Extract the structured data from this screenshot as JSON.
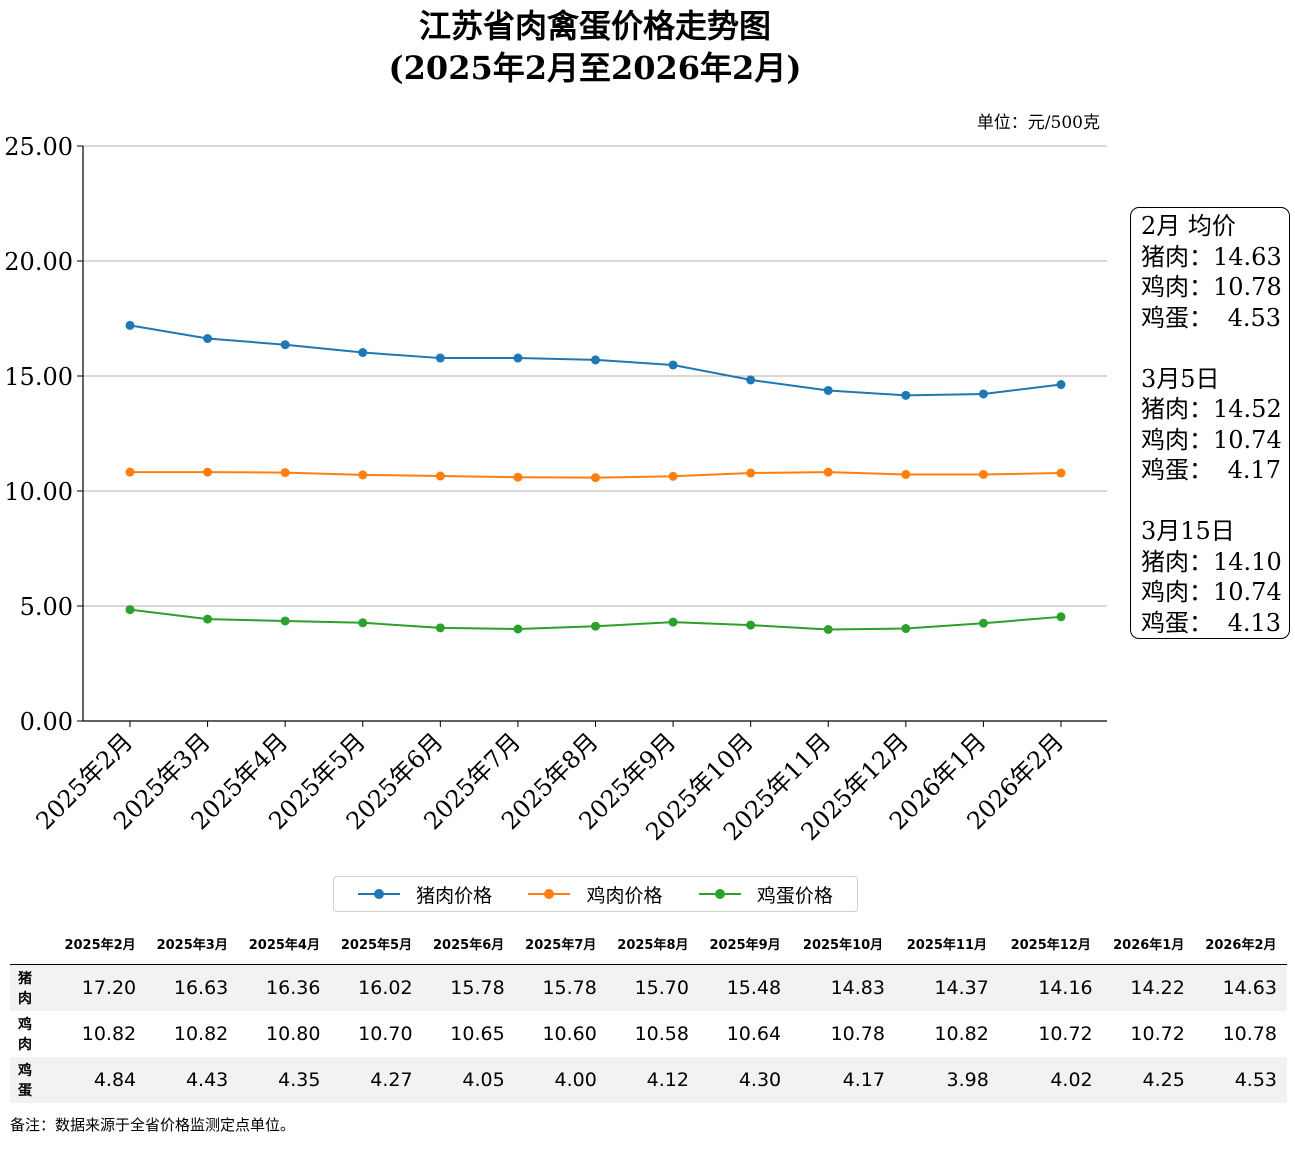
{
  "title_line1": "江苏省肉禽蛋价格走势图",
  "title_line2": "(2025年2月至2026年2月)",
  "unit_label": "单位：元/500克",
  "chart_data": {
    "type": "line",
    "categories": [
      "2025年2月",
      "2025年3月",
      "2025年4月",
      "2025年5月",
      "2025年6月",
      "2025年7月",
      "2025年8月",
      "2025年9月",
      "2025年10月",
      "2025年11月",
      "2025年12月",
      "2026年1月",
      "2026年2月"
    ],
    "series": [
      {
        "name": "猪肉价格",
        "color": "#1f77b4",
        "values": [
          17.2,
          16.63,
          16.36,
          16.02,
          15.78,
          15.78,
          15.7,
          15.48,
          14.83,
          14.37,
          14.16,
          14.22,
          14.63
        ]
      },
      {
        "name": "鸡肉价格",
        "color": "#ff7f0e",
        "values": [
          10.82,
          10.82,
          10.8,
          10.7,
          10.65,
          10.6,
          10.58,
          10.64,
          10.78,
          10.82,
          10.72,
          10.72,
          10.78
        ]
      },
      {
        "name": "鸡蛋价格",
        "color": "#2ca02c",
        "values": [
          4.84,
          4.43,
          4.35,
          4.27,
          4.05,
          4.0,
          4.12,
          4.3,
          4.17,
          3.98,
          4.02,
          4.25,
          4.53
        ]
      }
    ],
    "ylim": [
      0,
      25
    ],
    "yticks": [
      "0.00",
      "5.00",
      "10.00",
      "15.00",
      "20.00",
      "25.00"
    ],
    "grid": "horizontal",
    "legend_position": "bottom-center"
  },
  "side_box": {
    "groups": [
      {
        "heading": "2月 均价",
        "rows": [
          {
            "label": "猪肉：",
            "value": "14.63"
          },
          {
            "label": "鸡肉：",
            "value": "10.78"
          },
          {
            "label": "鸡蛋：",
            "value": "4.53"
          }
        ]
      },
      {
        "heading": "3月5日",
        "rows": [
          {
            "label": "猪肉：",
            "value": "14.52"
          },
          {
            "label": "鸡肉：",
            "value": "10.74"
          },
          {
            "label": "鸡蛋：",
            "value": "4.17"
          }
        ]
      },
      {
        "heading": "3月15日",
        "rows": [
          {
            "label": "猪肉：",
            "value": "14.10"
          },
          {
            "label": "鸡肉：",
            "value": "10.74"
          },
          {
            "label": "鸡蛋：",
            "value": "4.13"
          }
        ]
      }
    ]
  },
  "table": {
    "columns": [
      "2025年2月",
      "2025年3月",
      "2025年4月",
      "2025年5月",
      "2025年6月",
      "2025年7月",
      "2025年8月",
      "2025年9月",
      "2025年10月",
      "2025年11月",
      "2025年12月",
      "2026年1月",
      "2026年2月"
    ],
    "rows": [
      {
        "label": "猪肉",
        "values": [
          "17.20",
          "16.63",
          "16.36",
          "16.02",
          "15.78",
          "15.78",
          "15.70",
          "15.48",
          "14.83",
          "14.37",
          "14.16",
          "14.22",
          "14.63"
        ]
      },
      {
        "label": "鸡肉",
        "values": [
          "10.82",
          "10.82",
          "10.80",
          "10.70",
          "10.65",
          "10.60",
          "10.58",
          "10.64",
          "10.78",
          "10.82",
          "10.72",
          "10.72",
          "10.78"
        ]
      },
      {
        "label": "鸡蛋",
        "values": [
          "4.84",
          "4.43",
          "4.35",
          "4.27",
          "4.05",
          "4.00",
          "4.12",
          "4.30",
          "4.17",
          "3.98",
          "4.02",
          "4.25",
          "4.53"
        ]
      }
    ]
  },
  "note": "备注：数据来源于全省价格监测定点单位。"
}
